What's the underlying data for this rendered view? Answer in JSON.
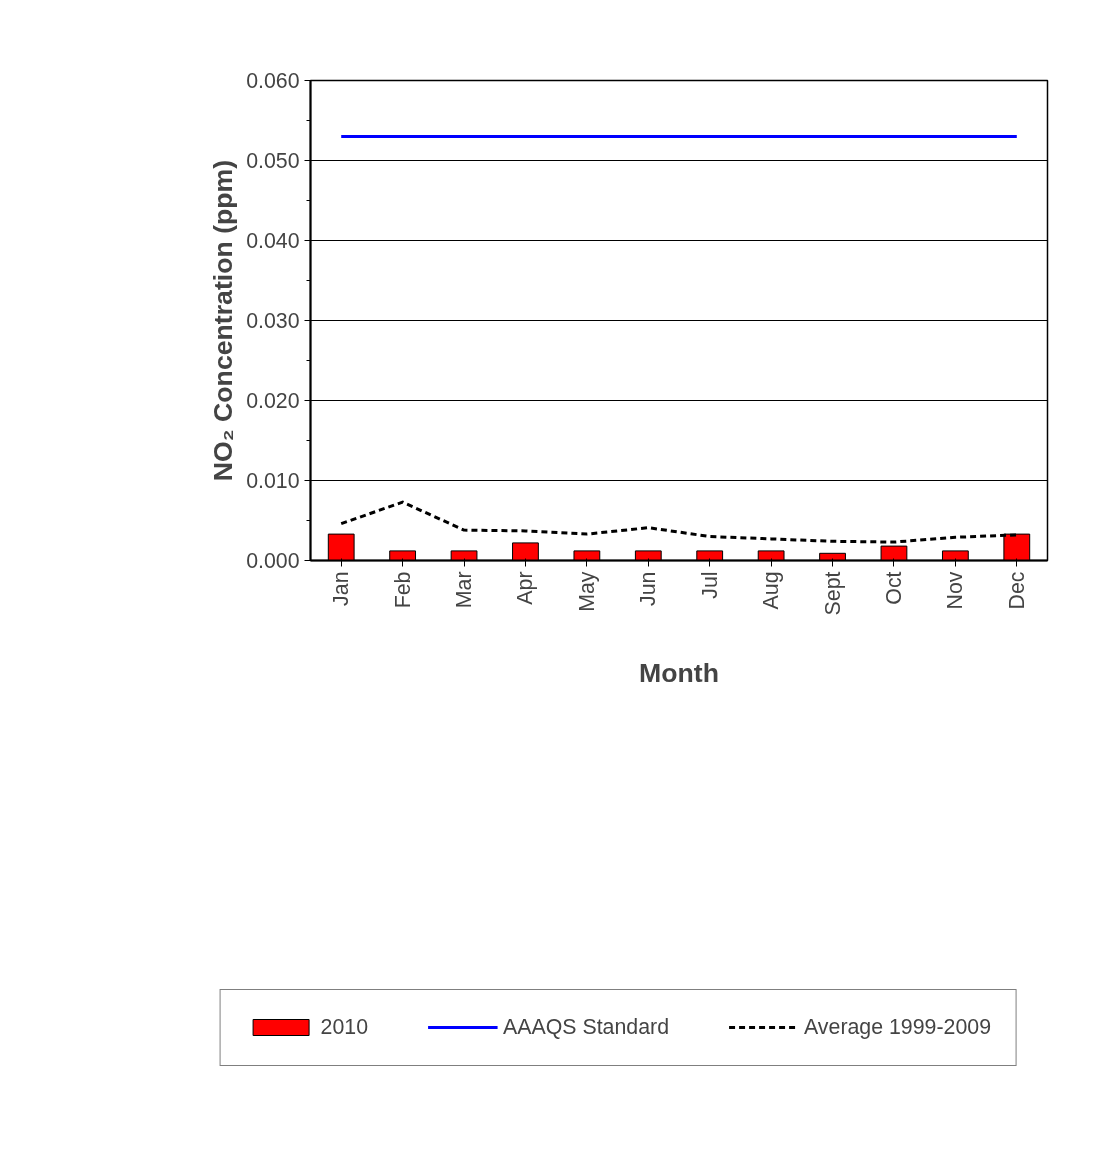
{
  "chart_data": {
    "type": "bar",
    "xlabel": "Month",
    "ylabel": "NO₂ Concentration (ppm)",
    "categories": [
      "Jan",
      "Feb",
      "Mar",
      "Apr",
      "May",
      "Jun",
      "Jul",
      "Aug",
      "Sept",
      "Oct",
      "Nov",
      "Dec"
    ],
    "series": [
      {
        "name": "2010",
        "color": "#ff0000",
        "values": [
          0.0033,
          0.0012,
          0.0012,
          0.0022,
          0.0012,
          0.0012,
          0.0012,
          0.0012,
          0.0009,
          0.0018,
          0.0012,
          0.0033
        ]
      },
      {
        "name": "AAAQS Standard",
        "type": "line",
        "color": "#0000ff",
        "line_style": "solid",
        "values": [
          0.053,
          0.053,
          0.053,
          0.053,
          0.053,
          0.053,
          0.053,
          0.053,
          0.053,
          0.053,
          0.053,
          0.053
        ]
      },
      {
        "name": "Average 1999-2009",
        "type": "line",
        "color": "#000000",
        "line_style": "dashed",
        "values": [
          0.0046,
          0.0073,
          0.0038,
          0.0037,
          0.0033,
          0.0041,
          0.003,
          0.0027,
          0.0024,
          0.0023,
          0.0029,
          0.0032
        ]
      }
    ],
    "ylim": [
      0,
      0.06
    ],
    "yticks": [
      {
        "value": 0,
        "label": "0.000"
      },
      {
        "value": 0.01,
        "label": "0.010"
      },
      {
        "value": 0.02,
        "label": "0.020"
      },
      {
        "value": 0.03,
        "label": "0.030"
      },
      {
        "value": 0.04,
        "label": "0.040"
      },
      {
        "value": 0.05,
        "label": "0.050"
      },
      {
        "value": 0.06,
        "label": "0.060"
      }
    ],
    "grid": "y",
    "legend": "bottom",
    "marker": "none"
  }
}
